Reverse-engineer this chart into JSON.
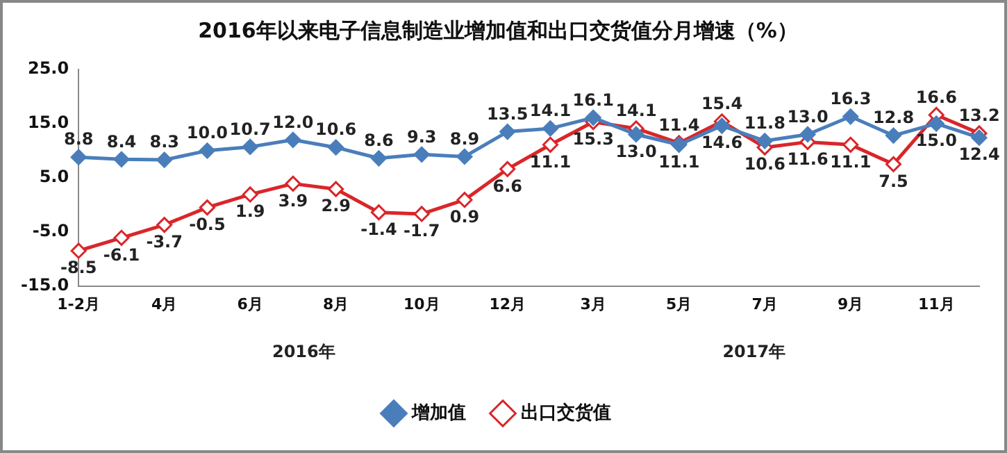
{
  "chart_data": {
    "type": "line",
    "title": "2016年以来电子信息制造业增加值和出口交货值分月增速（%）",
    "categories": [
      "1-2月",
      null,
      "4月",
      null,
      "6月",
      null,
      "8月",
      null,
      "10月",
      null,
      "12月",
      null,
      "3月",
      null,
      "5月",
      null,
      "7月",
      null,
      "9月",
      null,
      "11月",
      null
    ],
    "series": [
      {
        "name": "增加值",
        "color": "#4a7ebb",
        "marker": "diamond",
        "values": [
          8.8,
          8.4,
          8.3,
          10.0,
          10.7,
          12.0,
          10.6,
          8.6,
          9.3,
          8.9,
          13.5,
          14.1,
          16.1,
          13.0,
          11.1,
          14.6,
          11.8,
          13.0,
          16.3,
          12.8,
          15.0,
          12.4
        ],
        "value_labels": [
          "8.8",
          "8.4",
          "8.3",
          "10.0",
          "10.7",
          "12.0",
          "10.6",
          "8.6",
          "9.3",
          "8.9",
          "13.5",
          "14.1",
          "16.1",
          "13.0",
          "11.1",
          "14.6",
          "11.8",
          "13.0",
          "16.3",
          "12.8",
          "15.0",
          "12.4"
        ]
      },
      {
        "name": "出口交货值",
        "color": "#d9262a",
        "marker": "diamond",
        "values": [
          -8.5,
          -6.1,
          -3.7,
          -0.5,
          1.9,
          3.9,
          2.9,
          -1.4,
          -1.7,
          0.9,
          6.6,
          11.1,
          15.3,
          14.1,
          11.4,
          15.4,
          10.6,
          11.6,
          11.1,
          7.5,
          16.6,
          13.2
        ],
        "value_labels": [
          "-8.5",
          "-6.1",
          "-3.7",
          "-0.5",
          "1.9",
          "3.9",
          "2.9",
          "-1.4",
          "-1.7",
          "0.9",
          "6.6",
          "11.1",
          "15.3",
          "14.1",
          "11.4",
          "15.4",
          "10.6",
          "11.6",
          "11.1",
          "7.5",
          "16.6",
          "13.2"
        ]
      }
    ],
    "ylim": [
      -15,
      25
    ],
    "yticks": [
      {
        "value": -15,
        "label": "-15.0"
      },
      {
        "value": -5,
        "label": "-5.0"
      },
      {
        "value": 5,
        "label": "5.0"
      },
      {
        "value": 15,
        "label": "15.0"
      },
      {
        "value": 25,
        "label": "25.0"
      }
    ],
    "annotations": [
      "2016年",
      "2017年"
    ],
    "legend": "bottom",
    "grid": false,
    "line_style": "solid"
  }
}
